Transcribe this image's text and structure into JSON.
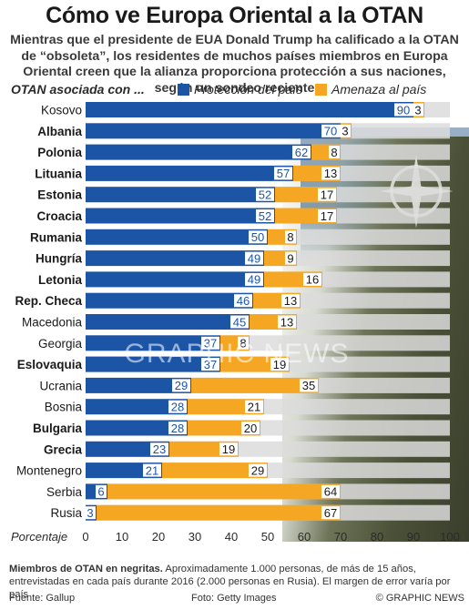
{
  "title": "Cómo ve Europa Oriental a la OTAN",
  "subtitle": "Mientras que el presidente de EUA Donald Trump ha calificado a la OTAN de “obsoleta”, los residentes de muchos países miembros en Europa Oriental creen que la alianza proporciona protección a sus naciones, según un sondeo reciente",
  "legend": {
    "heading": "OTAN asociada con ...",
    "protection_label": "Protección del país",
    "threat_label": "Amenaza al país"
  },
  "colors": {
    "protection": "#1d55a6",
    "threat": "#f5a623",
    "track": "#dcdcdc"
  },
  "chart_data": {
    "type": "bar",
    "orientation": "horizontal-stacked",
    "categories": [
      "Kosovo",
      "Albania",
      "Polonia",
      "Lituania",
      "Estonia",
      "Croacia",
      "Rumania",
      "Hungría",
      "Letonia",
      "Rep. Checa",
      "Macedonia",
      "Georgia",
      "Eslovaquia",
      "Ucrania",
      "Bosnia",
      "Bulgaria",
      "Grecia",
      "Montenegro",
      "Serbia",
      "Rusia"
    ],
    "nato_members": [
      false,
      true,
      true,
      true,
      true,
      true,
      true,
      true,
      true,
      true,
      false,
      false,
      true,
      false,
      false,
      true,
      true,
      false,
      false,
      false
    ],
    "series": [
      {
        "name": "Protección del país",
        "values": [
          90,
          70,
          62,
          57,
          52,
          52,
          50,
          49,
          49,
          46,
          45,
          37,
          37,
          29,
          28,
          28,
          23,
          21,
          6,
          3
        ]
      },
      {
        "name": "Amenaza al país",
        "values": [
          3,
          3,
          8,
          13,
          17,
          17,
          8,
          9,
          16,
          13,
          13,
          8,
          19,
          35,
          21,
          20,
          19,
          29,
          64,
          67
        ]
      }
    ],
    "xlabel": "Porcentaje",
    "xticks": [
      0,
      10,
      20,
      30,
      40,
      50,
      60,
      70,
      80,
      90,
      100
    ],
    "xlim": [
      0,
      100
    ]
  },
  "watermark": "GRAPHIC NEWS",
  "footnote": {
    "bold": "Miembros de OTAN en negritas.",
    "text": " Aproximadamente 1.000 personas, de más de 15 años, entrevistadas en cada país durante 2016 (2.000 personas en Rusia). El margen de error varía por país"
  },
  "footer": {
    "source": "Fuente: Gallup",
    "photo": "Foto: Getty Images",
    "credit": "© GRAPHIC NEWS"
  }
}
